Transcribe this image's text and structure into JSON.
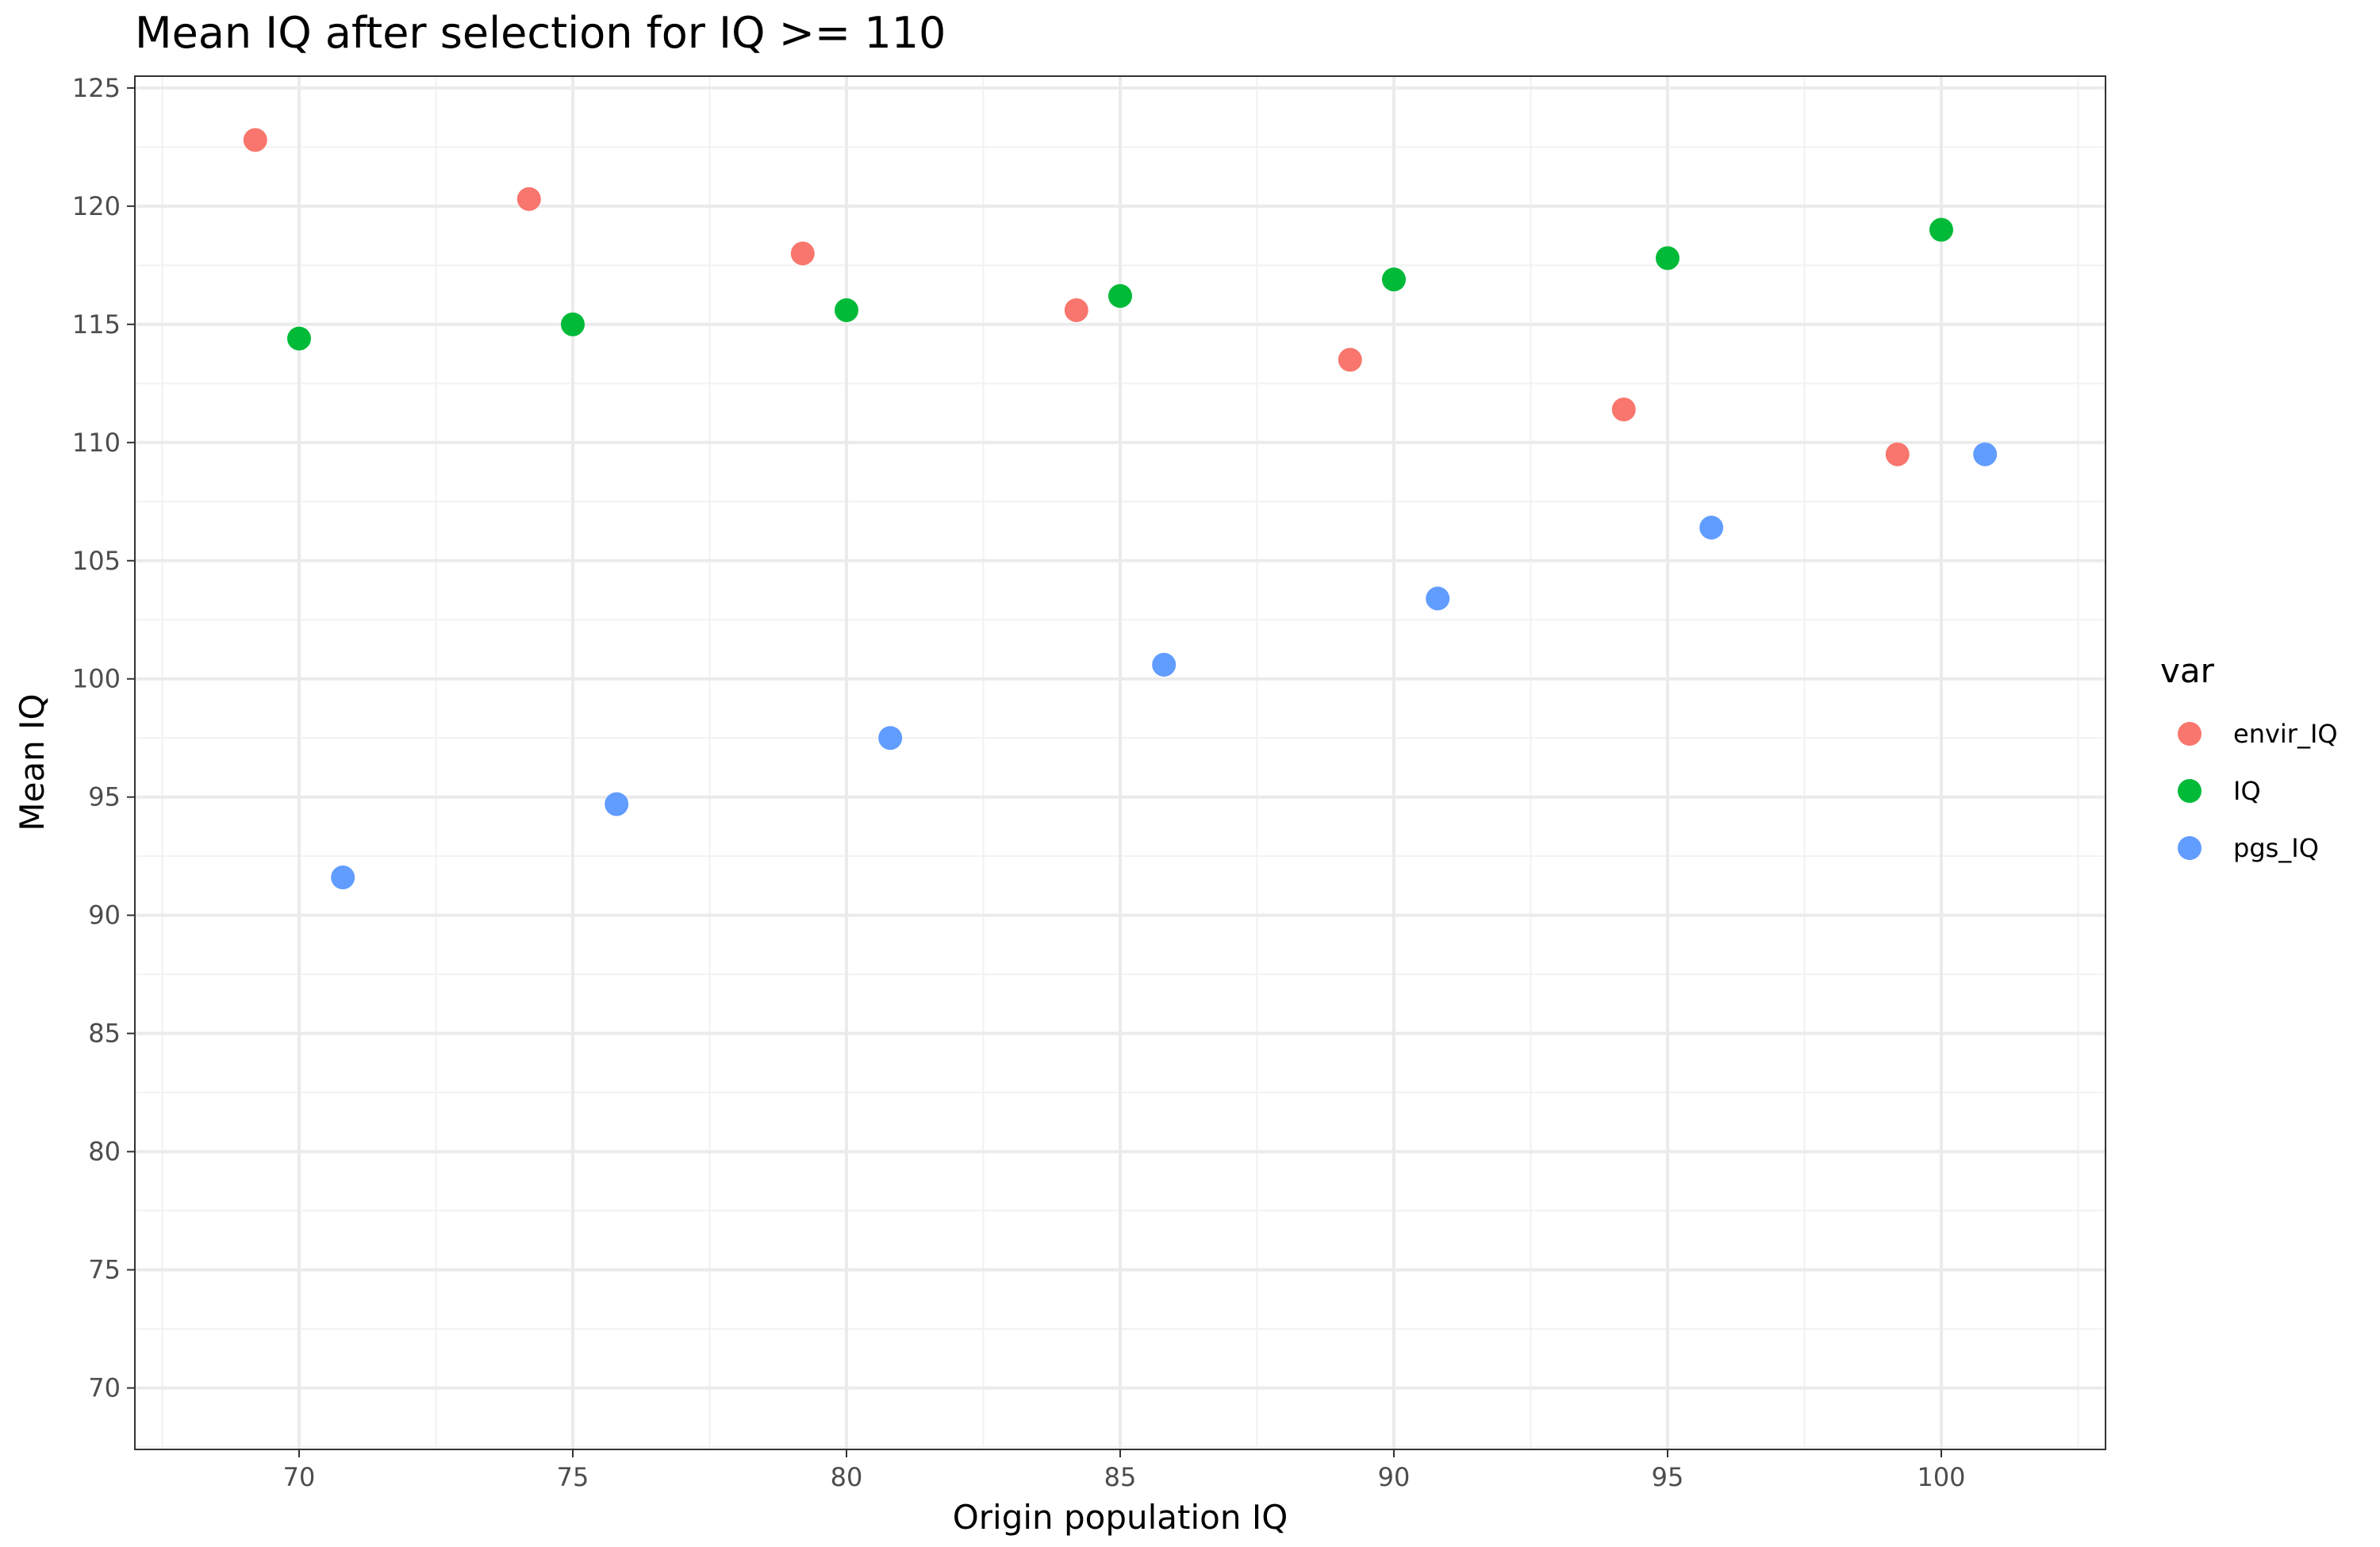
{
  "chart_data": {
    "type": "scatter",
    "title": "Mean IQ after selection for IQ >= 110",
    "xlabel": "Origin population IQ",
    "ylabel": "Mean IQ",
    "xlim": [
      67,
      103
    ],
    "ylim": [
      67.4,
      125.5
    ],
    "x_ticks": [
      70,
      75,
      80,
      85,
      90,
      95,
      100
    ],
    "y_ticks": [
      70,
      75,
      80,
      85,
      90,
      95,
      100,
      105,
      110,
      115,
      120,
      125
    ],
    "grid": true,
    "legend": {
      "title": "var",
      "position": "right"
    },
    "series": [
      {
        "name": "envir_IQ",
        "color": "#F8766D",
        "points": [
          [
            69.2,
            122.8
          ],
          [
            74.2,
            120.3
          ],
          [
            79.2,
            118.0
          ],
          [
            84.2,
            115.6
          ],
          [
            89.2,
            113.5
          ],
          [
            94.2,
            111.4
          ],
          [
            99.2,
            109.5
          ]
        ]
      },
      {
        "name": "IQ",
        "color": "#00BA38",
        "points": [
          [
            70,
            114.4
          ],
          [
            75,
            115.0
          ],
          [
            80,
            115.6
          ],
          [
            85,
            116.2
          ],
          [
            90,
            116.9
          ],
          [
            95,
            117.8
          ],
          [
            100,
            119.0
          ]
        ]
      },
      {
        "name": "pgs_IQ",
        "color": "#619CFF",
        "points": [
          [
            70.8,
            91.6
          ],
          [
            75.8,
            94.7
          ],
          [
            80.8,
            97.5
          ],
          [
            85.8,
            100.6
          ],
          [
            90.8,
            103.4
          ],
          [
            95.8,
            106.4
          ],
          [
            100.8,
            109.5
          ]
        ]
      }
    ]
  }
}
